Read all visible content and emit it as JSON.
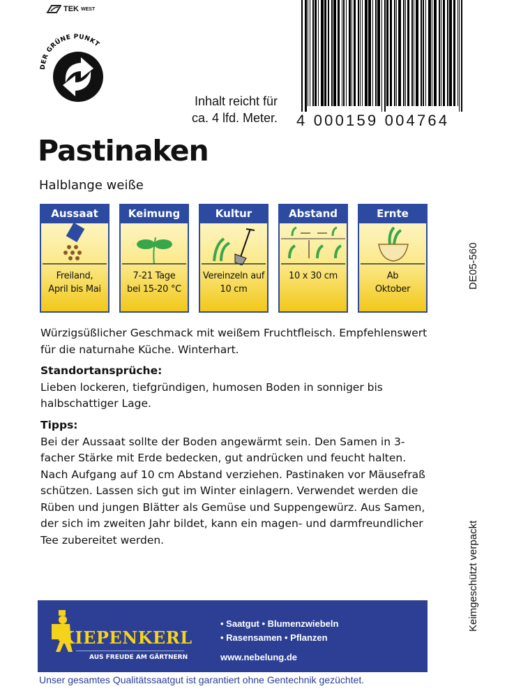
{
  "logos": {
    "tek": "TEK",
    "tek_suffix": "WEST",
    "gruener_punkt": "DER GRÜNE PUNKT",
    "brand": "KIEPENKERL"
  },
  "barcode": {
    "digits": "4 000159 004764"
  },
  "contents": {
    "line1": "Inhalt reicht für",
    "line2": "ca. 4 lfd. Meter."
  },
  "product": {
    "title": "Pastinaken",
    "variety": "Halblange weiße"
  },
  "panels": [
    {
      "header": "Aussaat",
      "icon": "seed-packet-icon",
      "line1": "Freiland,",
      "line2": "April bis Mai"
    },
    {
      "header": "Keimung",
      "icon": "seedling-icon",
      "line1": "7-21 Tage",
      "line2": "bei 15-20 °C"
    },
    {
      "header": "Kultur",
      "icon": "spade-icon",
      "line1": "Vereinzeln auf",
      "line2": "10 cm"
    },
    {
      "header": "Abstand",
      "icon": "spacing-icon",
      "line1": "10 x 30 cm",
      "line2": ""
    },
    {
      "header": "Ernte",
      "icon": "harvest-bowl-icon",
      "line1": "Ab",
      "line2": "Oktober"
    }
  ],
  "description": "Würzigsüßlicher Geschmack mit weißem Fruchtfleisch. Empfehlenswert für die naturnahe Küche. Winterhart.",
  "location": {
    "heading": "Standortansprüche:",
    "text": "Lieben lockeren, tiefgründigen, humosen Boden in sonniger bis halbschattiger Lage."
  },
  "tips": {
    "heading": "Tipps:",
    "text": "Bei der Aussaat sollte der Boden angewärmt sein. Den Samen in 3-facher Stärke mit Erde bedecken, gut andrücken und feucht halten. Nach Aufgang auf 10 cm Abstand verziehen. Pastinaken vor Mäusefraß schützen. Lassen sich gut im Winter einlagern. Verwendet werden die Rüben und jungen Blätter als Gemüse und Suppengewürz. Aus Samen, der sich im zweiten Jahr bildet, kann ein magen- und darmfreundlicher Tee zubereitet werden."
  },
  "side": {
    "code": "DE05-560",
    "note": "Keimgeschützt verpackt"
  },
  "banner": {
    "slogan": "AUS FREUDE AM GÄRTNERN",
    "line1": "• Saatgut • Blumenzwiebeln",
    "line2": "• Rasensamen • Pflanzen",
    "url": "www.nebelung.de"
  },
  "footer": "Unser gesamtes Qualitätssaatgut ist garantiert ohne Gentechnik gezüchtet.",
  "colors": {
    "blue": "#2c3f94",
    "yellow": "#f5d31b",
    "green": "#3aa64a"
  }
}
